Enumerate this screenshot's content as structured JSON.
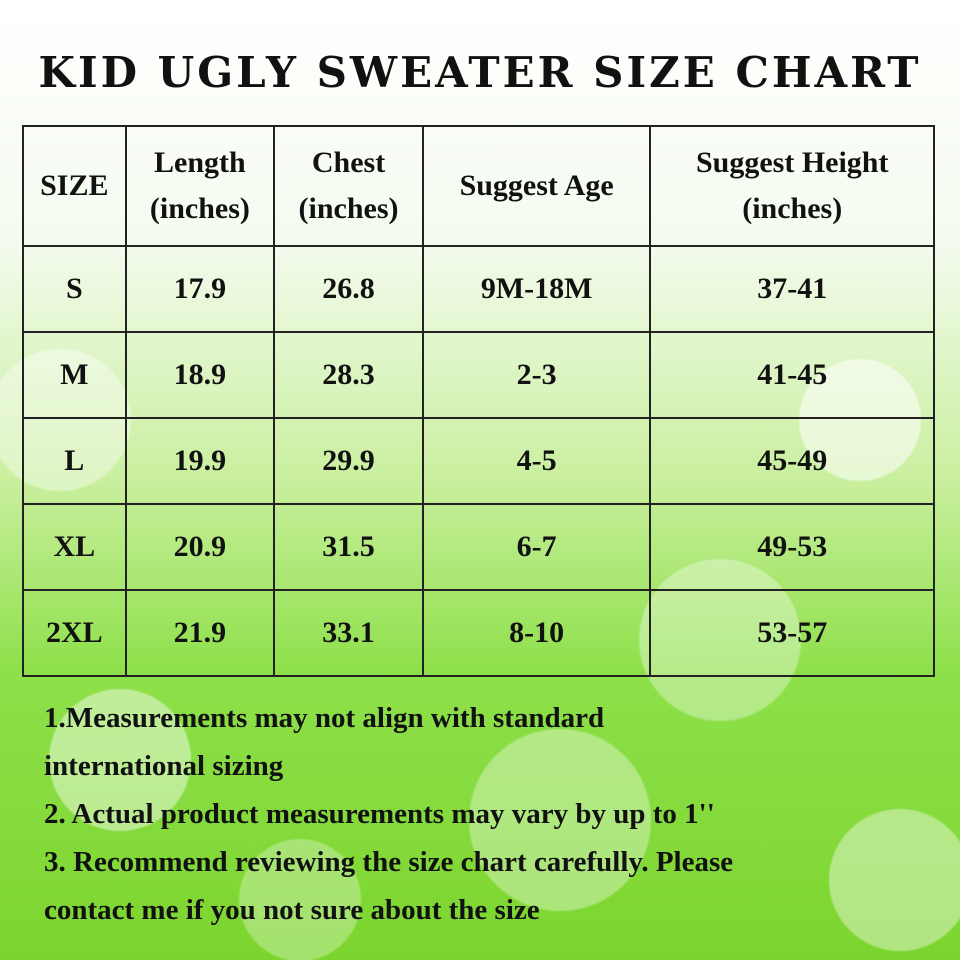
{
  "title": "KID UGLY SWEATER SIZE CHART",
  "table": {
    "headers": [
      "SIZE",
      "Length\n(inches)",
      "Chest\n(inches)",
      "Suggest Age",
      "Suggest Height\n(inches)"
    ],
    "header_lines": [
      [
        "SIZE"
      ],
      [
        "Length",
        "(inches)"
      ],
      [
        "Chest",
        "(inches)"
      ],
      [
        "Suggest Age"
      ],
      [
        "Suggest Height",
        "(inches)"
      ]
    ],
    "rows": [
      [
        "S",
        "17.9",
        "26.8",
        "9M-18M",
        "37-41"
      ],
      [
        "M",
        "18.9",
        "28.3",
        "2-3",
        "41-45"
      ],
      [
        "L",
        "19.9",
        "29.9",
        "4-5",
        "45-49"
      ],
      [
        "XL",
        "20.9",
        "31.5",
        "6-7",
        "49-53"
      ],
      [
        "2XL",
        "21.9",
        "33.1",
        "8-10",
        "53-57"
      ]
    ]
  },
  "notes": [
    "1.Measurements may not align with standard",
    "international sizing",
    "2. Actual product measurements may vary by up to 1''",
    "3. Recommend reviewing the size chart carefully. Please",
    "contact me if you not sure about the size"
  ],
  "colors": {
    "background_top": "#ffffff",
    "background_bottom": "#7cd52e",
    "border": "#222222"
  }
}
